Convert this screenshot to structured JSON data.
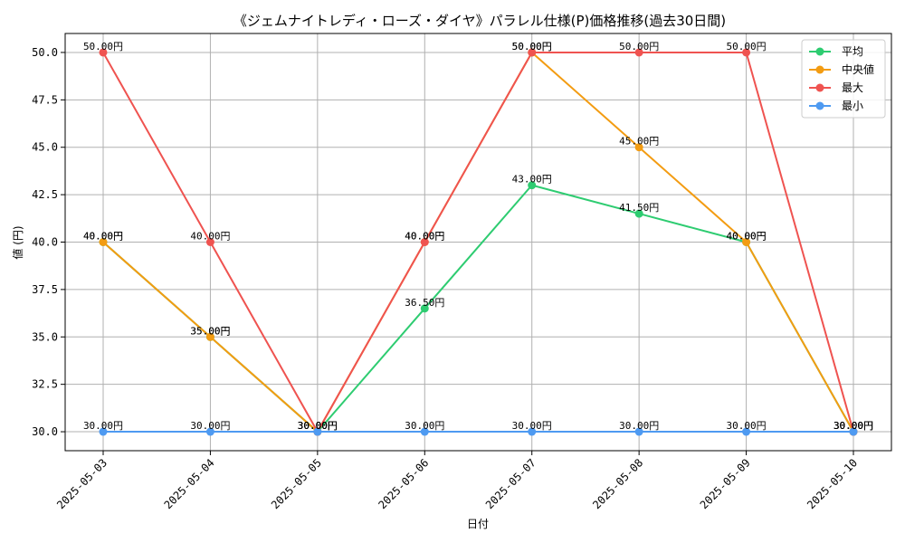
{
  "chart_data": {
    "type": "line",
    "title": "《ジェムナイトレディ・ローズ・ダイヤ》パラレル仕様(P)価格推移(過去30日間)",
    "xlabel": "日付",
    "ylabel": "値 (円)",
    "categories": [
      "2025-05-03",
      "2025-05-04",
      "2025-05-05",
      "2025-05-06",
      "2025-05-07",
      "2025-05-08",
      "2025-05-09",
      "2025-05-10"
    ],
    "ylim": [
      29.0,
      51.0
    ],
    "yticks": [
      "30.0",
      "32.5",
      "35.0",
      "37.5",
      "40.0",
      "42.5",
      "45.0",
      "47.5",
      "50.0"
    ],
    "grid": true,
    "legend_position": "top-right",
    "value_suffix": "円",
    "series": [
      {
        "name": "平均",
        "color": "#2ecc71",
        "values": [
          40.0,
          35.0,
          30.0,
          36.5,
          43.0,
          41.5,
          40.0,
          30.0
        ]
      },
      {
        "name": "中央値",
        "color": "#f39c12",
        "values": [
          40.0,
          35.0,
          30.0,
          40.0,
          50.0,
          45.0,
          40.0,
          30.0
        ]
      },
      {
        "name": "最大",
        "color": "#ef5350",
        "values": [
          50.0,
          40.0,
          30.0,
          40.0,
          50.0,
          50.0,
          50.0,
          30.0
        ]
      },
      {
        "name": "最小",
        "color": "#4e9af1",
        "values": [
          30.0,
          30.0,
          30.0,
          30.0,
          30.0,
          30.0,
          30.0,
          30.0
        ]
      }
    ]
  }
}
